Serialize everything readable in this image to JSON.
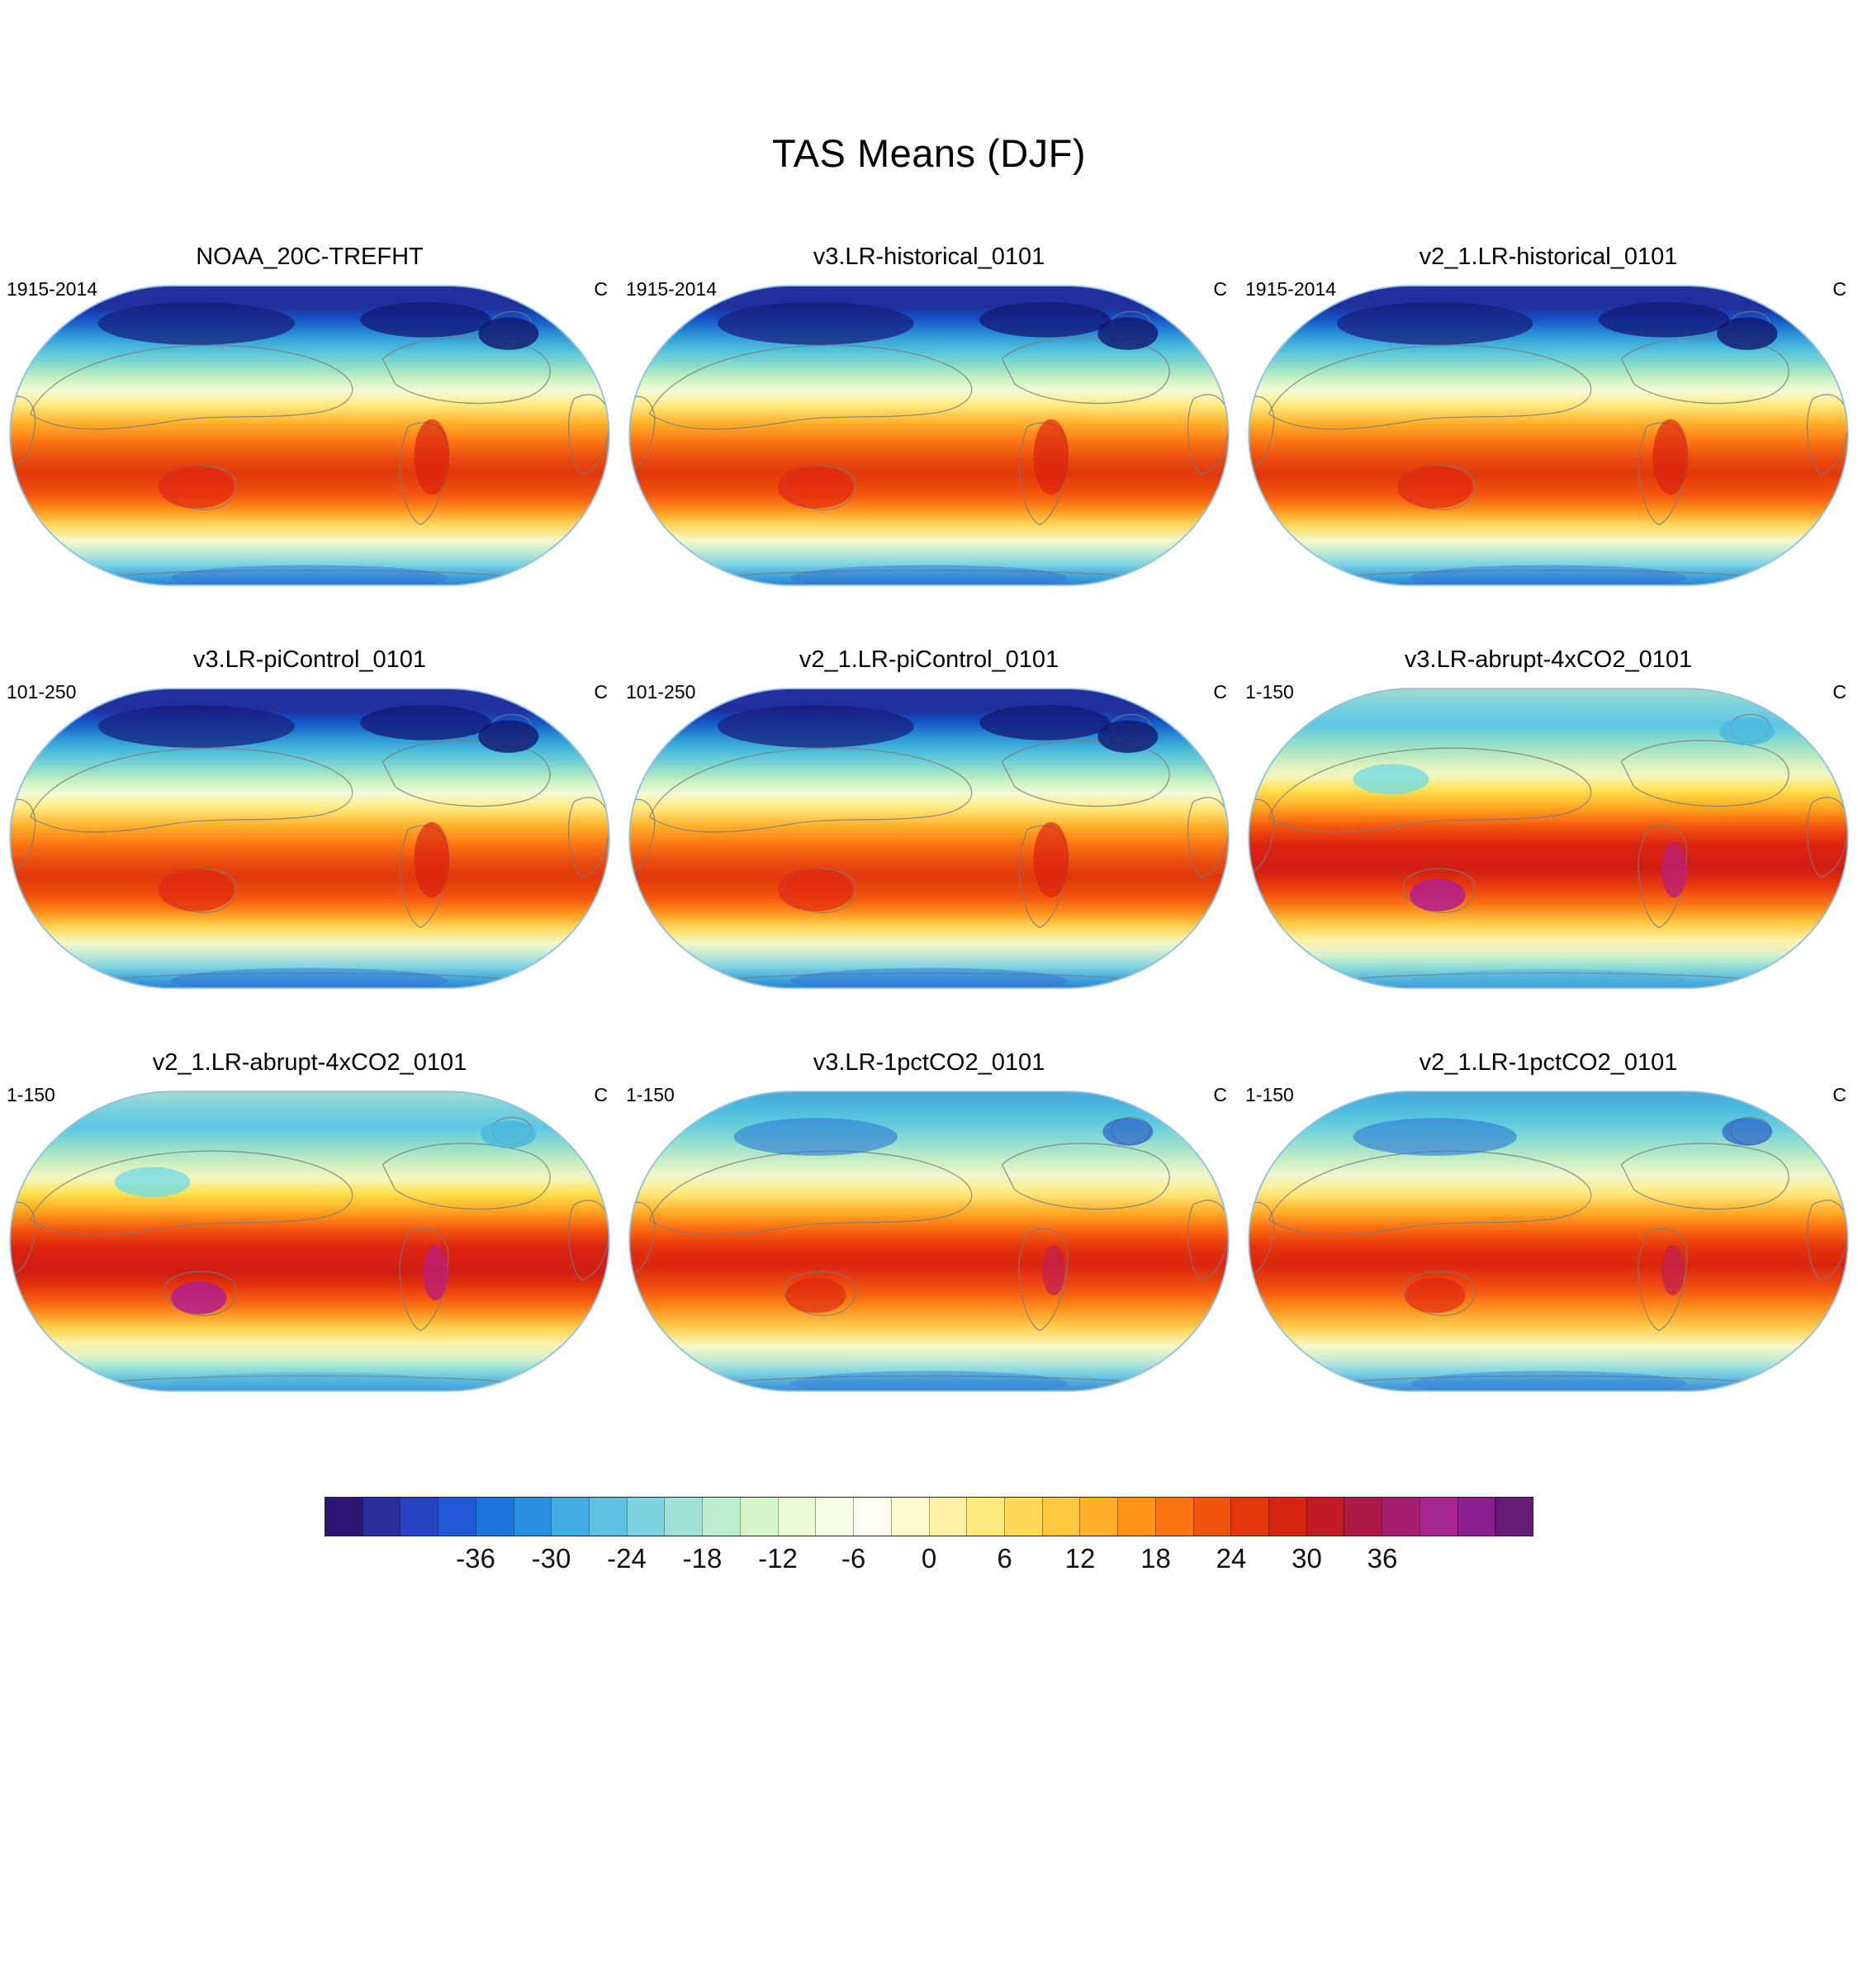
{
  "figure": {
    "title": "TAS Means (DJF)"
  },
  "panels": [
    {
      "title": "NOAA_20C-TREFHT",
      "period": "1915-2014",
      "units": "C",
      "variant": "cool"
    },
    {
      "title": "v3.LR-historical_0101",
      "period": "1915-2014",
      "units": "C",
      "variant": "cool"
    },
    {
      "title": "v2_1.LR-historical_0101",
      "period": "1915-2014",
      "units": "C",
      "variant": "cool"
    },
    {
      "title": "v3.LR-piControl_0101",
      "period": "101-250",
      "units": "C",
      "variant": "cool"
    },
    {
      "title": "v2_1.LR-piControl_0101",
      "period": "101-250",
      "units": "C",
      "variant": "cool"
    },
    {
      "title": "v3.LR-abrupt-4xCO2_0101",
      "period": "1-150",
      "units": "C",
      "variant": "warm"
    },
    {
      "title": "v2_1.LR-abrupt-4xCO2_0101",
      "period": "1-150",
      "units": "C",
      "variant": "warm"
    },
    {
      "title": "v3.LR-1pctCO2_0101",
      "period": "1-150",
      "units": "C",
      "variant": "mid"
    },
    {
      "title": "v2_1.LR-1pctCO2_0101",
      "period": "1-150",
      "units": "C",
      "variant": "mid"
    }
  ],
  "colorbar": {
    "min": -48,
    "max": 48,
    "step": 3,
    "ticks": [
      -36,
      -30,
      -24,
      -18,
      -12,
      -6,
      0,
      6,
      12,
      18,
      24,
      30,
      36
    ],
    "colors": [
      "#2b1773",
      "#2c2d9c",
      "#2742c2",
      "#2059d6",
      "#1d74df",
      "#2a90e0",
      "#40ace2",
      "#5ec2e4",
      "#7ed3e0",
      "#9fe2d8",
      "#bcedcf",
      "#d6f5c9",
      "#e9fad4",
      "#f7fce4",
      "#fffef2",
      "#fff9cd",
      "#fff1a4",
      "#ffe87c",
      "#ffd857",
      "#ffc53c",
      "#ffae27",
      "#ff9318",
      "#fa7411",
      "#f1540d",
      "#e4380c",
      "#d52410",
      "#c01b26",
      "#ad1a4a",
      "#a61e70",
      "#a62692",
      "#8a2090",
      "#651a78"
    ]
  },
  "chart_data": {
    "type": "heatmap",
    "title": "TAS Means (DJF)",
    "units": "C",
    "layout": "3x3 grid of global maps, shared colorbar at bottom",
    "projection": "global oval (Robinson-like), Pacific-centered",
    "legend_position": "bottom",
    "colorbar_range": [
      -48,
      48
    ],
    "colorbar_ticks": [
      -36,
      -30,
      -24,
      -18,
      -12,
      -6,
      0,
      6,
      12,
      18,
      24,
      30,
      36
    ],
    "panels": [
      {
        "title": "NOAA_20C-TREFHT",
        "period": "1915-2014",
        "pattern": "cold Arctic (deep blue), hot tropics (red), cool Antarctic (cyan-blue)"
      },
      {
        "title": "v3.LR-historical_0101",
        "period": "1915-2014",
        "pattern": "cold Arctic, hot tropics, cool Antarctic"
      },
      {
        "title": "v2_1.LR-historical_0101",
        "period": "1915-2014",
        "pattern": "cold Arctic, hot tropics, cool Antarctic"
      },
      {
        "title": "v3.LR-piControl_0101",
        "period": "101-250",
        "pattern": "cold Arctic, hot tropics, cool Antarctic"
      },
      {
        "title": "v2_1.LR-piControl_0101",
        "period": "101-250",
        "pattern": "cold Arctic, hot tropics, cool Antarctic"
      },
      {
        "title": "v3.LR-abrupt-4xCO2_0101",
        "period": "1-150",
        "pattern": "much warmer: cyan/green Arctic, deep red tropics with magenta maxima"
      },
      {
        "title": "v2_1.LR-abrupt-4xCO2_0101",
        "period": "1-150",
        "pattern": "much warmer: cyan/green Arctic, deep red tropics with magenta maxima"
      },
      {
        "title": "v3.LR-1pctCO2_0101",
        "period": "1-150",
        "pattern": "moderately warmer: light blue Arctic, strong red tropics"
      },
      {
        "title": "v2_1.LR-1pctCO2_0101",
        "period": "1-150",
        "pattern": "moderately warmer: light blue Arctic, strong red tropics"
      }
    ]
  }
}
